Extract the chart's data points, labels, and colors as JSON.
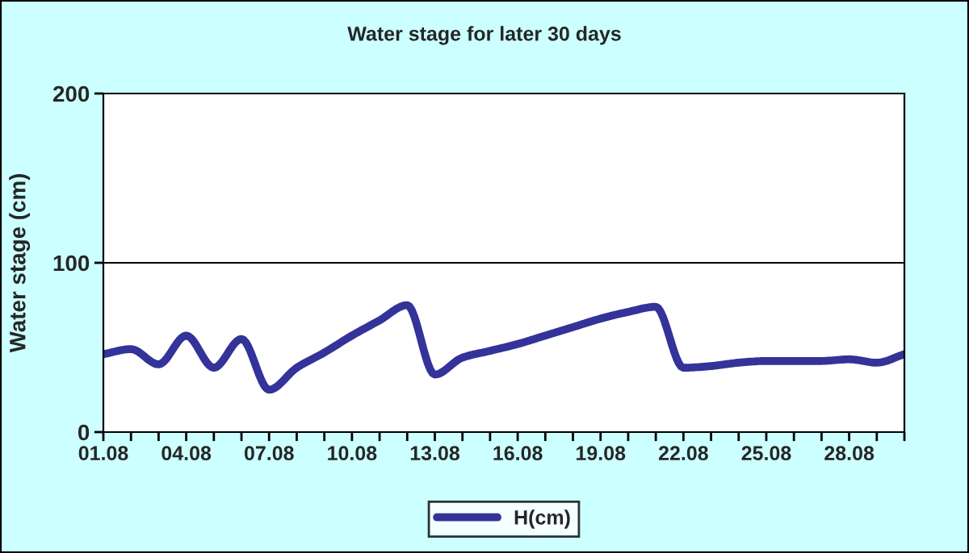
{
  "chart_data": {
    "type": "line",
    "title": "Water stage for later 30 days",
    "ylabel": "Water stage (cm)",
    "categories": [
      "01.08",
      null,
      null,
      "04.08",
      null,
      null,
      "07.08",
      null,
      null,
      "10.08",
      null,
      null,
      "13.08",
      null,
      null,
      "16.08",
      null,
      null,
      "19.08",
      null,
      null,
      "22.08",
      null,
      null,
      "25.08",
      null,
      null,
      "28.08",
      null,
      null
    ],
    "series": [
      {
        "name": "H(cm)",
        "color": "#333399",
        "values": [
          46,
          49,
          40,
          57,
          38,
          55,
          25,
          38,
          47,
          57,
          66,
          75,
          34,
          44,
          48,
          52,
          57,
          62,
          67,
          71,
          74,
          38,
          39,
          41,
          42,
          42,
          42,
          43,
          41,
          46
        ]
      }
    ],
    "ylim": [
      0,
      200
    ],
    "yticks": [
      0,
      100,
      200
    ],
    "grid": "y",
    "legend": "bottom"
  }
}
